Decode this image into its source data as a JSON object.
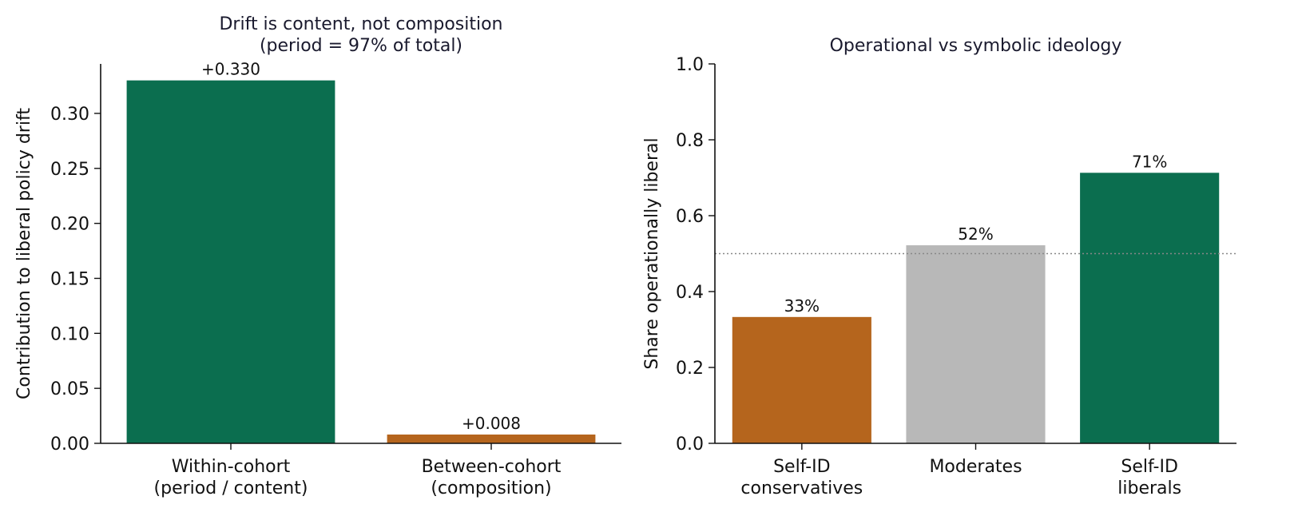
{
  "chart_data": [
    {
      "type": "bar",
      "title_lines": [
        "Drift is content, not composition",
        "(period = 97% of total)"
      ],
      "xlabel": "",
      "ylabel": "Contribution to liberal policy drift",
      "ylim": [
        0,
        0.345
      ],
      "yticks": [
        0.0,
        0.05,
        0.1,
        0.15,
        0.2,
        0.25,
        0.3
      ],
      "ytick_labels": [
        "0.00",
        "0.05",
        "0.10",
        "0.15",
        "0.20",
        "0.25",
        "0.30"
      ],
      "categories": [
        [
          "Within-cohort",
          "(period / content)"
        ],
        [
          "Between-cohort",
          "(composition)"
        ]
      ],
      "values": [
        0.33,
        0.008
      ],
      "value_labels": [
        "+0.330",
        "+0.008"
      ],
      "colors": [
        "#0b6e4f",
        "#b5651d"
      ],
      "grid": false
    },
    {
      "type": "bar",
      "title_lines": [
        "Operational vs symbolic ideology"
      ],
      "xlabel": "",
      "ylabel": "Share operationally liberal",
      "ylim": [
        0,
        1.0
      ],
      "yticks": [
        0.0,
        0.2,
        0.4,
        0.6,
        0.8,
        1.0
      ],
      "ytick_labels": [
        "0.0",
        "0.2",
        "0.4",
        "0.6",
        "0.8",
        "1.0"
      ],
      "categories": [
        [
          "Self-ID",
          "conservatives"
        ],
        [
          "Moderates"
        ],
        [
          "Self-ID",
          "liberals"
        ]
      ],
      "values": [
        0.333,
        0.522,
        0.713
      ],
      "value_labels": [
        "33%",
        "52%",
        "71%"
      ],
      "colors": [
        "#b5651d",
        "#b8b8b8",
        "#0b6e4f"
      ],
      "reference_line": 0.5,
      "reference_color": "#888888",
      "grid": false
    }
  ]
}
